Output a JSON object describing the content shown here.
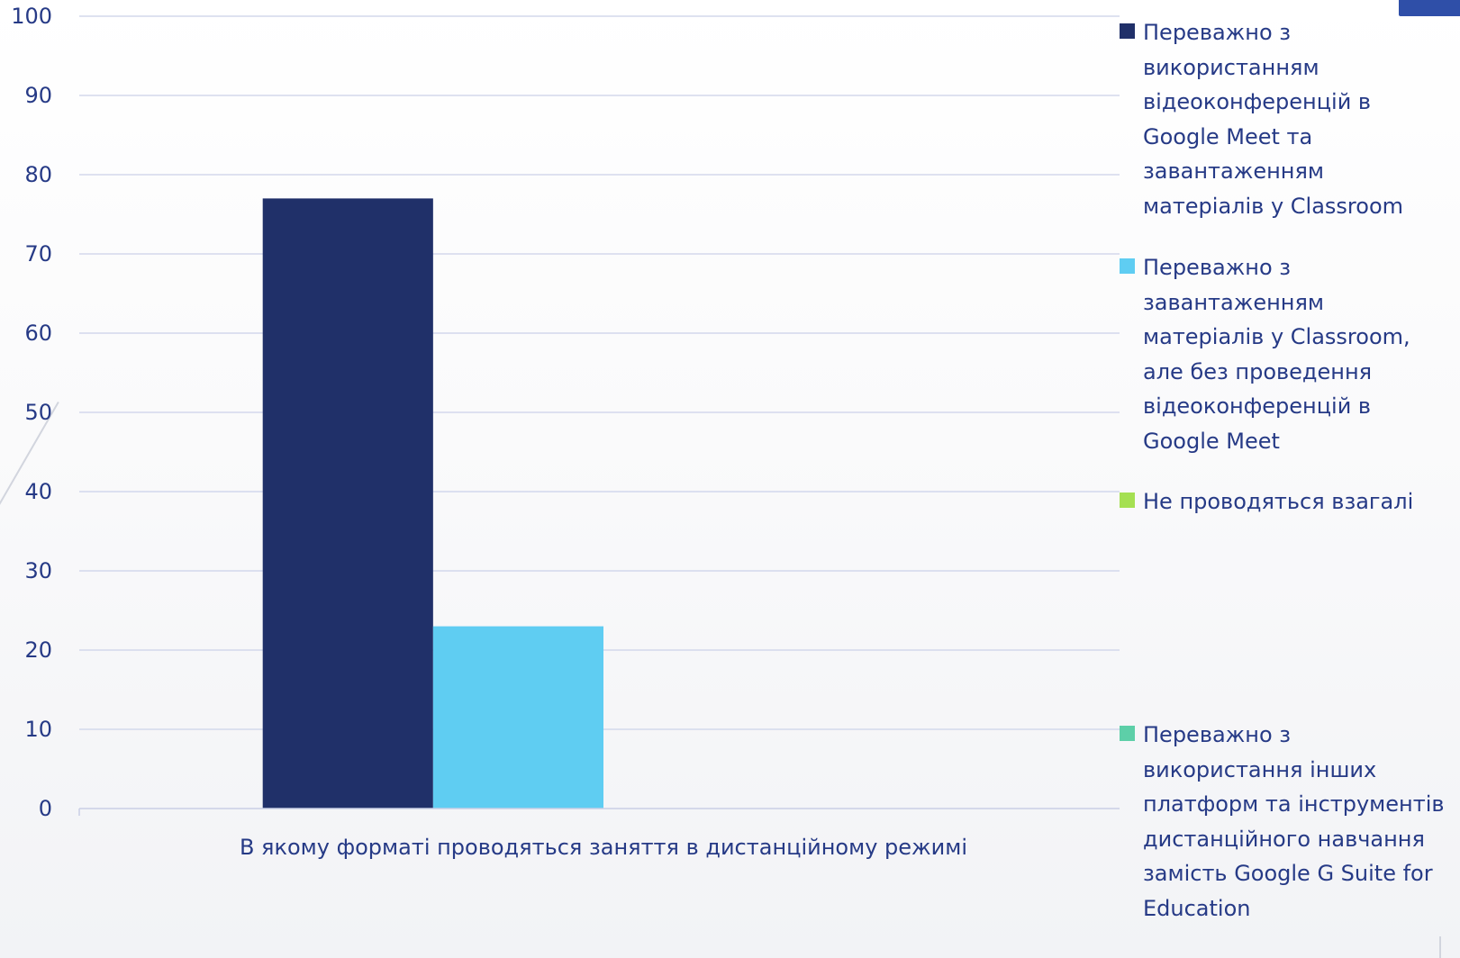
{
  "chart_data": {
    "type": "bar",
    "categories": [
      "В якому форматі проводяться заняття в дистанційному режимі"
    ],
    "series": [
      {
        "name": "Переважно з використанням відеоконференцій в Google Meet та завантаженням матеріалів у Classroom",
        "values": [
          77
        ],
        "color": "#203069"
      },
      {
        "name": "Переважно з завантаженням матеріалів у Classroom, але без проведення відеоконференцій в Google Meet",
        "values": [
          23
        ],
        "color": "#5fcdf2"
      },
      {
        "name": "Не проводяться взагалі",
        "values": [
          0
        ],
        "color": "#a5e052"
      },
      {
        "name": "Переважно з використання інших платформ та інструментів дистанційного навчання замість Google G Suite for Education",
        "values": [
          0
        ],
        "color": "#5dcfa8"
      }
    ],
    "ylim": [
      0,
      100
    ],
    "yticks": [
      0,
      10,
      20,
      30,
      40,
      50,
      60,
      70,
      80,
      90,
      100
    ],
    "grid": true,
    "legend_position": "right",
    "title": "",
    "xlabel": "",
    "ylabel": ""
  }
}
